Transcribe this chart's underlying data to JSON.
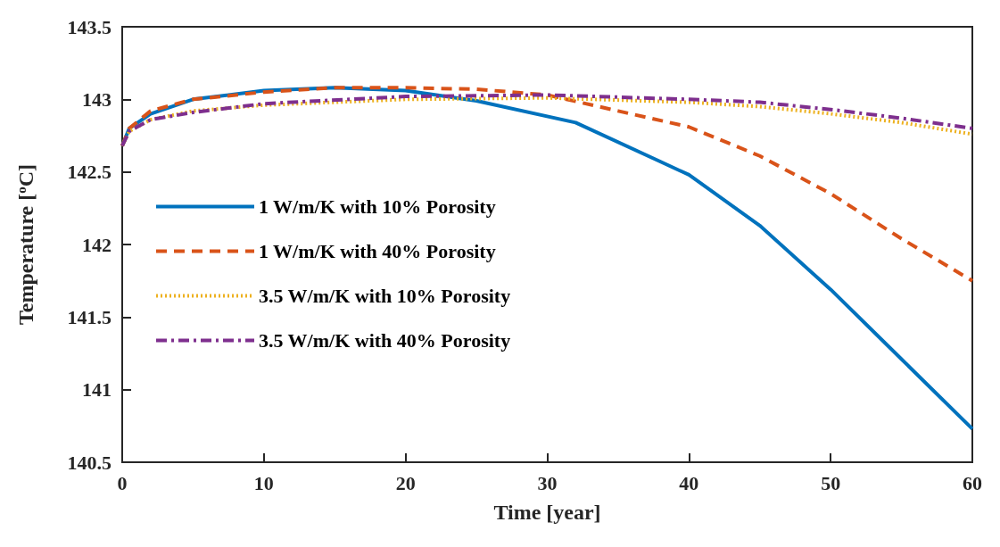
{
  "chart_data": {
    "type": "line",
    "xlabel": "Time [year]",
    "ylabel": "Temperature [$^{o}$C]",
    "xlim": [
      0,
      60
    ],
    "xticks": [
      0,
      10,
      20,
      30,
      40,
      50,
      60
    ],
    "ylim": [
      140.5,
      143.5
    ],
    "yticks": [
      140.5,
      141,
      141.5,
      142,
      142.5,
      143,
      143.5
    ],
    "grid": false,
    "legend": "left",
    "marker": "none",
    "series": [
      {
        "name": "1 W/m/K with 10% Porosity",
        "color": "#0072bd",
        "line_style": "solid",
        "x": [
          0,
          0.5,
          2,
          5,
          10,
          15,
          20,
          25,
          32,
          38,
          40,
          45,
          50,
          55,
          60
        ],
        "values": [
          142.68,
          142.8,
          142.9,
          143.0,
          143.06,
          143.08,
          143.06,
          142.99,
          142.84,
          142.57,
          142.48,
          142.13,
          141.69,
          141.21,
          140.73
        ]
      },
      {
        "name": "1 W/m/K with 40% Porosity",
        "color": "#d95319",
        "line_style": "dashed",
        "x": [
          0,
          0.5,
          2,
          5,
          10,
          15,
          20,
          25,
          30,
          35,
          40,
          45,
          50,
          55,
          60
        ],
        "values": [
          142.68,
          142.8,
          142.92,
          143.0,
          143.05,
          143.08,
          143.08,
          143.07,
          143.03,
          142.92,
          142.81,
          142.61,
          142.35,
          142.04,
          141.75
        ]
      },
      {
        "name": "3.5 W/m/K with 10% Porosity",
        "color": "#edb120",
        "line_style": "dotted",
        "x": [
          0,
          0.5,
          2,
          5,
          10,
          20,
          30,
          40,
          45,
          50,
          55,
          60
        ],
        "values": [
          142.68,
          142.78,
          142.86,
          142.92,
          142.96,
          143.0,
          143.01,
          142.98,
          142.95,
          142.9,
          142.84,
          142.76
        ]
      },
      {
        "name": "3.5 W/m/K with 40% Porosity",
        "color": "#7e2f8e",
        "line_style": "dashdot",
        "x": [
          0,
          0.5,
          2,
          5,
          10,
          20,
          30,
          40,
          45,
          50,
          55,
          60
        ],
        "values": [
          142.68,
          142.78,
          142.86,
          142.91,
          142.97,
          143.02,
          143.03,
          143.0,
          142.98,
          142.93,
          142.87,
          142.8
        ]
      }
    ]
  }
}
